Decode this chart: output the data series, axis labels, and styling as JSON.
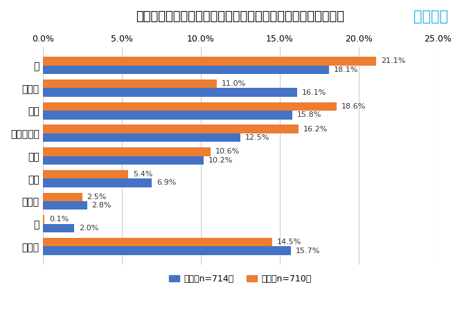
{
  "title": "ストレス発散の為の旅行に一緒に行きたくないのは誰ですか？",
  "watermark": "エアトリ",
  "categories": [
    "親",
    "ひとり",
    "親戚",
    "パートナー",
    "友人",
    "兄弟",
    "祖父母",
    "孫",
    "その他"
  ],
  "male_values": [
    18.1,
    16.1,
    15.8,
    12.5,
    10.2,
    6.9,
    2.8,
    2.0,
    15.7
  ],
  "female_values": [
    21.1,
    11.0,
    18.6,
    16.2,
    10.6,
    5.4,
    2.5,
    0.1,
    14.5
  ],
  "male_color": "#4472C4",
  "female_color": "#ED7D31",
  "male_label": "男性（n=714）",
  "female_label": "女性（n=710）",
  "xlim": [
    0,
    25.0
  ],
  "xticks": [
    0.0,
    5.0,
    10.0,
    15.0,
    20.0,
    25.0
  ],
  "xtick_labels": [
    "0.0%",
    "5.0%",
    "10.0%",
    "15.0%",
    "20.0%",
    "25.0%"
  ],
  "background_color": "#ffffff",
  "grid_color": "#cccccc",
  "title_fontsize": 13,
  "watermark_color": "#29ABE2",
  "watermark_fontsize": 15,
  "label_fontsize": 8,
  "ytick_fontsize": 10,
  "xtick_fontsize": 9,
  "legend_fontsize": 9,
  "bar_height": 0.38
}
